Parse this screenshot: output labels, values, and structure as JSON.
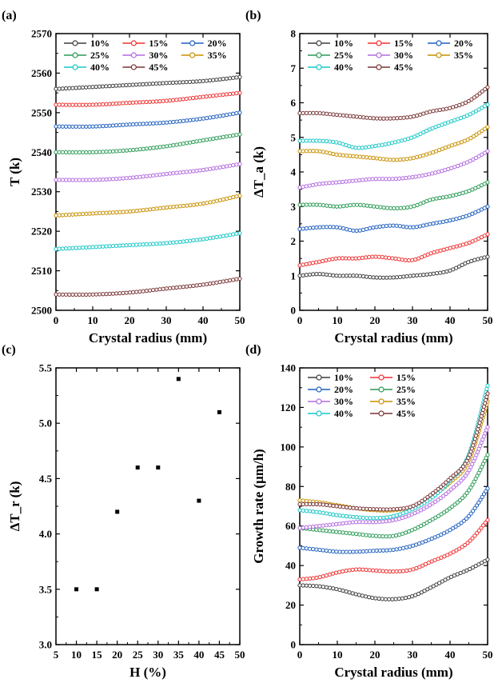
{
  "colors": {
    "10%": "#3d3d3d",
    "15%": "#f03030",
    "20%": "#1f5fbf",
    "25%": "#2a9a55",
    "30%": "#b36be0",
    "35%": "#c89000",
    "40%": "#18c6c6",
    "45%": "#7a3535"
  },
  "chart_data": [
    {
      "panel": "(a)",
      "type": "line",
      "xlabel": "Crystal radius (mm)",
      "ylabel": "T (k)",
      "xlim": [
        0,
        50
      ],
      "ylim": [
        2500,
        2570
      ],
      "xticks": [
        0,
        10,
        20,
        30,
        40,
        50
      ],
      "yticks": [
        2500,
        2510,
        2520,
        2530,
        2540,
        2550,
        2560,
        2570
      ],
      "legend": {
        "placement": "top",
        "columns": 3
      },
      "series": [
        {
          "name": "10%",
          "x": [
            0,
            10,
            20,
            30,
            40,
            50
          ],
          "y": [
            2556,
            2556.5,
            2557,
            2557.5,
            2558,
            2559
          ]
        },
        {
          "name": "15%",
          "x": [
            0,
            10,
            20,
            30,
            40,
            50
          ],
          "y": [
            2552,
            2552,
            2552.5,
            2553,
            2554,
            2555
          ]
        },
        {
          "name": "20%",
          "x": [
            0,
            10,
            20,
            30,
            40,
            50
          ],
          "y": [
            2546.5,
            2546.5,
            2547,
            2547.5,
            2548.5,
            2550
          ]
        },
        {
          "name": "25%",
          "x": [
            0,
            10,
            20,
            30,
            40,
            50
          ],
          "y": [
            2540,
            2540,
            2540.5,
            2541.5,
            2543,
            2544.5
          ]
        },
        {
          "name": "30%",
          "x": [
            0,
            10,
            20,
            30,
            40,
            50
          ],
          "y": [
            2533,
            2533,
            2533.5,
            2534.5,
            2535.5,
            2537
          ]
        },
        {
          "name": "35%",
          "x": [
            0,
            10,
            20,
            30,
            40,
            50
          ],
          "y": [
            2524,
            2524.5,
            2525,
            2526,
            2527,
            2529
          ]
        },
        {
          "name": "40%",
          "x": [
            0,
            10,
            20,
            30,
            40,
            50
          ],
          "y": [
            2515.5,
            2516,
            2516.5,
            2517,
            2518,
            2519.5
          ]
        },
        {
          "name": "45%",
          "x": [
            0,
            10,
            20,
            30,
            40,
            50
          ],
          "y": [
            2504,
            2504,
            2504.5,
            2505.5,
            2506.5,
            2508
          ]
        }
      ]
    },
    {
      "panel": "(b)",
      "type": "line",
      "xlabel": "Crystal radius (mm)",
      "ylabel": "ΔT_a (k)",
      "xlim": [
        0,
        50
      ],
      "ylim": [
        0,
        8
      ],
      "xticks": [
        0,
        10,
        20,
        30,
        40,
        50
      ],
      "yticks": [
        0,
        1,
        2,
        3,
        4,
        5,
        6,
        7,
        8
      ],
      "legend": {
        "placement": "top",
        "columns": 3
      },
      "series": [
        {
          "name": "10%",
          "x": [
            0,
            5,
            10,
            15,
            20,
            25,
            30,
            35,
            40,
            45,
            50
          ],
          "y": [
            1.0,
            1.05,
            1.0,
            1.0,
            0.95,
            0.95,
            1.0,
            1.05,
            1.15,
            1.4,
            1.55
          ]
        },
        {
          "name": "15%",
          "x": [
            0,
            5,
            10,
            15,
            20,
            25,
            30,
            35,
            40,
            45,
            50
          ],
          "y": [
            1.3,
            1.4,
            1.5,
            1.5,
            1.55,
            1.5,
            1.45,
            1.65,
            1.8,
            1.95,
            2.2
          ]
        },
        {
          "name": "20%",
          "x": [
            0,
            5,
            10,
            15,
            20,
            25,
            30,
            35,
            40,
            45,
            50
          ],
          "y": [
            2.35,
            2.4,
            2.4,
            2.3,
            2.4,
            2.45,
            2.4,
            2.5,
            2.6,
            2.75,
            3.0
          ]
        },
        {
          "name": "25%",
          "x": [
            0,
            5,
            10,
            15,
            20,
            25,
            30,
            35,
            40,
            45,
            50
          ],
          "y": [
            3.05,
            3.05,
            3.0,
            3.05,
            3.0,
            2.95,
            3.0,
            3.2,
            3.3,
            3.45,
            3.7
          ]
        },
        {
          "name": "30%",
          "x": [
            0,
            5,
            10,
            15,
            20,
            25,
            30,
            35,
            40,
            45,
            50
          ],
          "y": [
            3.55,
            3.65,
            3.7,
            3.75,
            3.8,
            3.8,
            3.85,
            3.95,
            4.1,
            4.3,
            4.6
          ]
        },
        {
          "name": "35%",
          "x": [
            0,
            5,
            10,
            15,
            20,
            25,
            30,
            35,
            40,
            45,
            50
          ],
          "y": [
            4.6,
            4.6,
            4.5,
            4.45,
            4.4,
            4.35,
            4.4,
            4.55,
            4.75,
            4.95,
            5.3
          ]
        },
        {
          "name": "40%",
          "x": [
            0,
            5,
            10,
            15,
            20,
            25,
            30,
            35,
            40,
            45,
            50
          ],
          "y": [
            4.9,
            4.9,
            4.85,
            4.7,
            4.75,
            4.85,
            5.0,
            5.25,
            5.45,
            5.65,
            5.95
          ]
        },
        {
          "name": "45%",
          "x": [
            0,
            5,
            10,
            15,
            20,
            25,
            30,
            35,
            40,
            45,
            50
          ],
          "y": [
            5.7,
            5.7,
            5.65,
            5.6,
            5.55,
            5.55,
            5.6,
            5.75,
            5.85,
            6.05,
            6.45
          ]
        }
      ]
    },
    {
      "panel": "(c)",
      "type": "scatter",
      "xlabel": "H (%)",
      "ylabel": "ΔT_r (k)",
      "xlim": [
        5,
        50
      ],
      "ylim": [
        3.0,
        5.5
      ],
      "xticks": [
        5,
        10,
        15,
        20,
        25,
        30,
        35,
        40,
        45,
        50
      ],
      "yticks": [
        3.0,
        3.5,
        4.0,
        4.5,
        5.0,
        5.5
      ],
      "points": {
        "x": [
          10,
          15,
          20,
          25,
          30,
          35,
          40,
          45
        ],
        "y": [
          3.5,
          3.5,
          4.2,
          4.6,
          4.6,
          5.4,
          4.3,
          5.1
        ]
      }
    },
    {
      "panel": "(d)",
      "type": "line",
      "xlabel": "Crystal radius (mm)",
      "ylabel": "Growth rate (μm/h)",
      "xlim": [
        0,
        50
      ],
      "ylim": [
        0,
        140
      ],
      "xticks": [
        0,
        10,
        20,
        30,
        40,
        50
      ],
      "yticks": [
        0,
        20,
        40,
        60,
        80,
        100,
        120,
        140
      ],
      "legend": {
        "placement": "top-left",
        "columns": 2
      },
      "series": [
        {
          "name": "10%",
          "x": [
            0,
            5,
            10,
            15,
            20,
            25,
            30,
            35,
            40,
            45,
            50
          ],
          "y": [
            30,
            29.5,
            28,
            25.5,
            23.5,
            23,
            24.5,
            29,
            34,
            38,
            43
          ]
        },
        {
          "name": "15%",
          "x": [
            0,
            5,
            10,
            15,
            20,
            25,
            30,
            35,
            40,
            45,
            50
          ],
          "y": [
            33,
            34,
            36.5,
            38,
            37.5,
            37,
            38,
            42,
            46,
            52,
            63
          ]
        },
        {
          "name": "20%",
          "x": [
            0,
            5,
            10,
            15,
            20,
            25,
            30,
            35,
            40,
            45,
            50
          ],
          "y": [
            49,
            48,
            47,
            47,
            47.5,
            48,
            50,
            53.5,
            58,
            65,
            79
          ]
        },
        {
          "name": "25%",
          "x": [
            0,
            5,
            10,
            15,
            20,
            25,
            30,
            35,
            40,
            45,
            50
          ],
          "y": [
            59,
            58,
            57,
            56,
            55,
            55,
            58,
            63,
            69,
            78,
            96
          ]
        },
        {
          "name": "30%",
          "x": [
            0,
            5,
            10,
            15,
            20,
            25,
            30,
            35,
            40,
            45,
            50
          ],
          "y": [
            59,
            60,
            61,
            62,
            62,
            63,
            66,
            71,
            78,
            88,
            110
          ]
        },
        {
          "name": "35%",
          "x": [
            0,
            5,
            10,
            15,
            20,
            25,
            30,
            35,
            40,
            45,
            50
          ],
          "y": [
            73,
            72,
            70.5,
            69,
            68,
            68,
            70,
            75,
            82,
            93,
            123
          ]
        },
        {
          "name": "40%",
          "x": [
            0,
            5,
            10,
            15,
            20,
            25,
            30,
            35,
            40,
            45,
            50
          ],
          "y": [
            68,
            67,
            65.5,
            64.5,
            64,
            65,
            68.5,
            74,
            83,
            96,
            131
          ]
        },
        {
          "name": "45%",
          "x": [
            0,
            5,
            10,
            15,
            20,
            25,
            30,
            35,
            40,
            45,
            50
          ],
          "y": [
            71,
            71,
            70,
            69,
            68.5,
            68.5,
            70,
            76,
            84,
            95,
            127
          ]
        }
      ]
    }
  ]
}
